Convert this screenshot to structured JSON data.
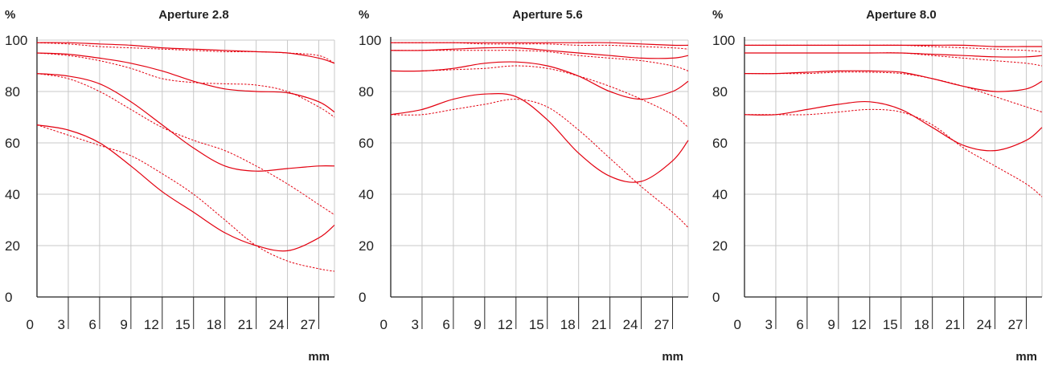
{
  "colors": {
    "curve": "#e3000f",
    "grid": "#c8c8c8",
    "axis": "#222222"
  },
  "chart_data": [
    {
      "type": "line",
      "title": "Aperture 2.8",
      "ylabel": "%",
      "xlabel": "mm",
      "xlim": [
        0,
        28.5
      ],
      "ylim": [
        0,
        100
      ],
      "xticks": [
        0,
        3,
        6,
        9,
        12,
        15,
        18,
        21,
        24,
        27
      ],
      "yticks": [
        0,
        20,
        40,
        60,
        80,
        100
      ],
      "grid": true,
      "series": [
        {
          "style": "solid",
          "x": [
            0,
            3,
            6,
            9,
            12,
            15,
            18,
            21,
            24,
            27,
            28.5
          ],
          "y": [
            99,
            99,
            98.5,
            98,
            97,
            96.5,
            96,
            95.5,
            95,
            93,
            91
          ]
        },
        {
          "style": "dashed",
          "x": [
            0,
            3,
            6,
            9,
            12,
            15,
            18,
            21,
            24,
            27,
            28.5
          ],
          "y": [
            99,
            98.5,
            97.5,
            97,
            96.5,
            96,
            95.5,
            95.5,
            95,
            94,
            91
          ]
        },
        {
          "style": "solid",
          "x": [
            0,
            3,
            6,
            9,
            12,
            15,
            18,
            21,
            24,
            27,
            28.5
          ],
          "y": [
            95,
            94.5,
            93,
            91,
            88,
            84,
            81,
            80,
            79.5,
            76,
            72
          ]
        },
        {
          "style": "dashed",
          "x": [
            0,
            3,
            6,
            9,
            12,
            15,
            18,
            21,
            24,
            27,
            28.5
          ],
          "y": [
            95,
            94,
            92,
            89,
            85,
            83.5,
            83,
            82.5,
            80,
            74,
            70
          ]
        },
        {
          "style": "solid",
          "x": [
            0,
            3,
            6,
            9,
            12,
            15,
            18,
            21,
            24,
            27,
            28.5
          ],
          "y": [
            87,
            86,
            83,
            76,
            67,
            58,
            51,
            49,
            50,
            51,
            51
          ]
        },
        {
          "style": "dashed",
          "x": [
            0,
            3,
            6,
            9,
            12,
            15,
            18,
            21,
            24,
            27,
            28.5
          ],
          "y": [
            87,
            85,
            80,
            73,
            66,
            61,
            57,
            51,
            44,
            36,
            32
          ]
        },
        {
          "style": "solid",
          "x": [
            0,
            3,
            6,
            9,
            12,
            15,
            18,
            21,
            24,
            27,
            28.5
          ],
          "y": [
            67,
            65,
            60,
            51,
            41,
            33,
            25,
            20,
            18,
            23,
            28
          ]
        },
        {
          "style": "dashed",
          "x": [
            0,
            3,
            6,
            9,
            12,
            15,
            18,
            21,
            24,
            27,
            28.5
          ],
          "y": [
            67,
            63,
            59,
            55,
            48,
            40,
            30,
            20,
            14,
            11,
            10
          ]
        }
      ]
    },
    {
      "type": "line",
      "title": "Aperture 5.6",
      "ylabel": "%",
      "xlabel": "mm",
      "xlim": [
        0,
        28.5
      ],
      "ylim": [
        0,
        100
      ],
      "xticks": [
        0,
        3,
        6,
        9,
        12,
        15,
        18,
        21,
        24,
        27
      ],
      "yticks": [
        0,
        20,
        40,
        60,
        80,
        100
      ],
      "grid": true,
      "series": [
        {
          "style": "solid",
          "x": [
            0,
            3,
            6,
            9,
            12,
            15,
            18,
            21,
            24,
            27,
            28.5
          ],
          "y": [
            99,
            99,
            99,
            99,
            99,
            99,
            99,
            99,
            98.5,
            98,
            98
          ]
        },
        {
          "style": "dashed",
          "x": [
            0,
            3,
            6,
            9,
            12,
            15,
            18,
            21,
            24,
            27,
            28.5
          ],
          "y": [
            99,
            99,
            99,
            98.5,
            98.5,
            98.5,
            98,
            98,
            97.5,
            97,
            96.5
          ]
        },
        {
          "style": "solid",
          "x": [
            0,
            3,
            6,
            9,
            12,
            15,
            18,
            21,
            24,
            27,
            28.5
          ],
          "y": [
            96,
            96,
            96.5,
            97,
            97,
            96,
            95,
            94,
            93,
            93,
            94
          ]
        },
        {
          "style": "dashed",
          "x": [
            0,
            3,
            6,
            9,
            12,
            15,
            18,
            21,
            24,
            27,
            28.5
          ],
          "y": [
            96,
            96,
            96,
            96,
            96,
            95.5,
            94,
            93,
            92,
            90,
            88
          ]
        },
        {
          "style": "solid",
          "x": [
            0,
            3,
            6,
            9,
            12,
            15,
            18,
            21,
            24,
            27,
            28.5
          ],
          "y": [
            88,
            88,
            89,
            91,
            91.5,
            90,
            86,
            80,
            77,
            80,
            84
          ]
        },
        {
          "style": "dashed",
          "x": [
            0,
            3,
            6,
            9,
            12,
            15,
            18,
            21,
            24,
            27,
            28.5
          ],
          "y": [
            88,
            88,
            88.5,
            89,
            90,
            89,
            86,
            82,
            77,
            71,
            66
          ]
        },
        {
          "style": "solid",
          "x": [
            0,
            3,
            6,
            9,
            12,
            15,
            18,
            21,
            24,
            27,
            28.5
          ],
          "y": [
            71,
            73,
            77,
            79,
            78,
            69,
            56,
            47,
            45,
            53,
            61
          ]
        },
        {
          "style": "dashed",
          "x": [
            0,
            3,
            6,
            9,
            12,
            15,
            18,
            21,
            24,
            27,
            28.5
          ],
          "y": [
            71,
            71,
            73,
            75,
            77,
            74,
            65,
            54,
            43,
            33,
            27
          ]
        }
      ]
    },
    {
      "type": "line",
      "title": "Aperture 8.0",
      "ylabel": "%",
      "xlabel": "mm",
      "xlim": [
        0,
        28.5
      ],
      "ylim": [
        0,
        100
      ],
      "xticks": [
        0,
        3,
        6,
        9,
        12,
        15,
        18,
        21,
        24,
        27
      ],
      "yticks": [
        0,
        20,
        40,
        60,
        80,
        100
      ],
      "grid": true,
      "series": [
        {
          "style": "solid",
          "x": [
            0,
            3,
            6,
            9,
            12,
            15,
            18,
            21,
            24,
            27,
            28.5
          ],
          "y": [
            98,
            98,
            98,
            98,
            98,
            98,
            98,
            98,
            97.5,
            97.5,
            97.5
          ]
        },
        {
          "style": "dashed",
          "x": [
            0,
            3,
            6,
            9,
            12,
            15,
            18,
            21,
            24,
            27,
            28.5
          ],
          "y": [
            98,
            98,
            98,
            98,
            98,
            98,
            97.5,
            97,
            96.5,
            96,
            95.5
          ]
        },
        {
          "style": "solid",
          "x": [
            0,
            3,
            6,
            9,
            12,
            15,
            18,
            21,
            24,
            27,
            28.5
          ],
          "y": [
            95,
            95,
            95,
            95,
            95,
            95,
            94.5,
            94,
            93.5,
            93.5,
            94
          ]
        },
        {
          "style": "dashed",
          "x": [
            0,
            3,
            6,
            9,
            12,
            15,
            18,
            21,
            24,
            27,
            28.5
          ],
          "y": [
            95,
            95,
            95,
            95,
            95,
            95,
            94,
            93,
            92,
            91,
            90
          ]
        },
        {
          "style": "solid",
          "x": [
            0,
            3,
            6,
            9,
            12,
            15,
            18,
            21,
            24,
            27,
            28.5
          ],
          "y": [
            87,
            87,
            87.5,
            88,
            88,
            87.5,
            85,
            82,
            80,
            81,
            84
          ]
        },
        {
          "style": "dashed",
          "x": [
            0,
            3,
            6,
            9,
            12,
            15,
            18,
            21,
            24,
            27,
            28.5
          ],
          "y": [
            87,
            87,
            87,
            87.5,
            87.5,
            87,
            85,
            82,
            78,
            74,
            72
          ]
        },
        {
          "style": "solid",
          "x": [
            0,
            3,
            6,
            9,
            12,
            15,
            18,
            21,
            24,
            27,
            28.5
          ],
          "y": [
            71,
            71,
            73,
            75,
            76,
            73,
            66,
            59,
            57,
            61,
            66
          ]
        },
        {
          "style": "dashed",
          "x": [
            0,
            3,
            6,
            9,
            12,
            15,
            18,
            21,
            24,
            27,
            28.5
          ],
          "y": [
            71,
            71,
            71,
            72,
            73,
            72,
            67,
            58,
            51,
            44,
            39
          ]
        }
      ]
    }
  ]
}
